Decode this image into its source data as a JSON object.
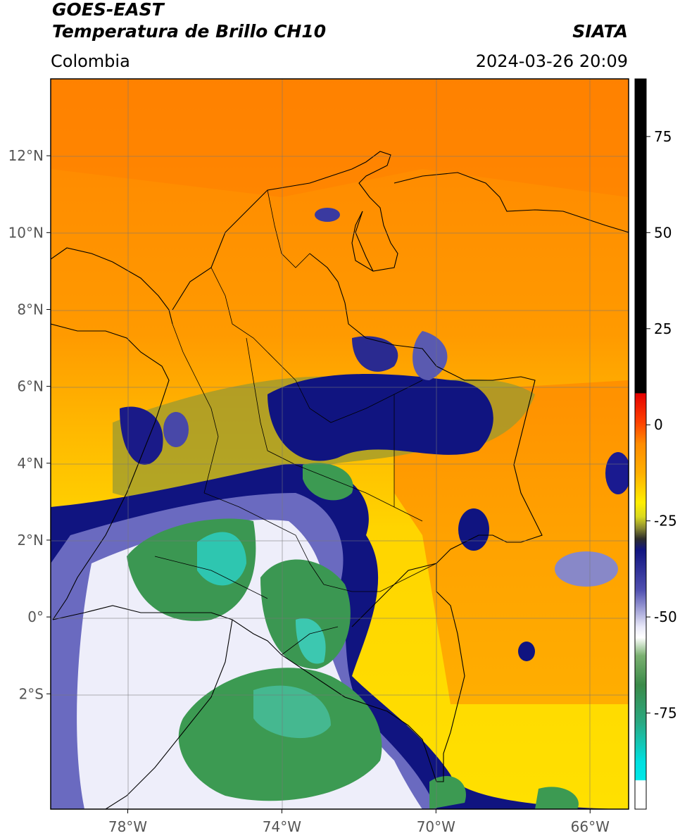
{
  "header": {
    "satellite": "GOES-EAST",
    "product": "Temperatura de Brillo CH10",
    "region": "Colombia",
    "agency": "SIATA",
    "datetime": "2024-03-26 20:09"
  },
  "map": {
    "lon_range": [
      -80,
      -65
    ],
    "lat_range": [
      -5,
      14
    ],
    "lat_ticks": [
      {
        "value": 12,
        "label": "12°N"
      },
      {
        "value": 10,
        "label": "10°N"
      },
      {
        "value": 8,
        "label": "8°N"
      },
      {
        "value": 6,
        "label": "6°N"
      },
      {
        "value": 4,
        "label": "4°N"
      },
      {
        "value": 2,
        "label": "2°N"
      },
      {
        "value": 0,
        "label": "0°"
      },
      {
        "value": -2,
        "label": "2°S"
      }
    ],
    "lon_ticks": [
      {
        "value": -78,
        "label": "78°W"
      },
      {
        "value": -74,
        "label": "74°W"
      },
      {
        "value": -70,
        "label": "70°W"
      },
      {
        "value": -66,
        "label": "66°W"
      }
    ],
    "colors": {
      "warm_orange": "#ff8c00",
      "orange": "#ffa500",
      "yellow": "#ffea00",
      "olive": "#b5b52a",
      "navy": "#101480",
      "white": "#f2f2ff",
      "green": "#3c9a52",
      "cyan": "#1fd6c4"
    }
  },
  "colorbar": {
    "range": [
      -100,
      90
    ],
    "ticks": [
      {
        "value": 75,
        "label": "75"
      },
      {
        "value": 50,
        "label": "50"
      },
      {
        "value": 25,
        "label": "25"
      },
      {
        "value": 0,
        "label": "0"
      },
      {
        "value": -25,
        "label": "-25"
      },
      {
        "value": -50,
        "label": "-50"
      },
      {
        "value": -75,
        "label": "-75"
      }
    ]
  }
}
